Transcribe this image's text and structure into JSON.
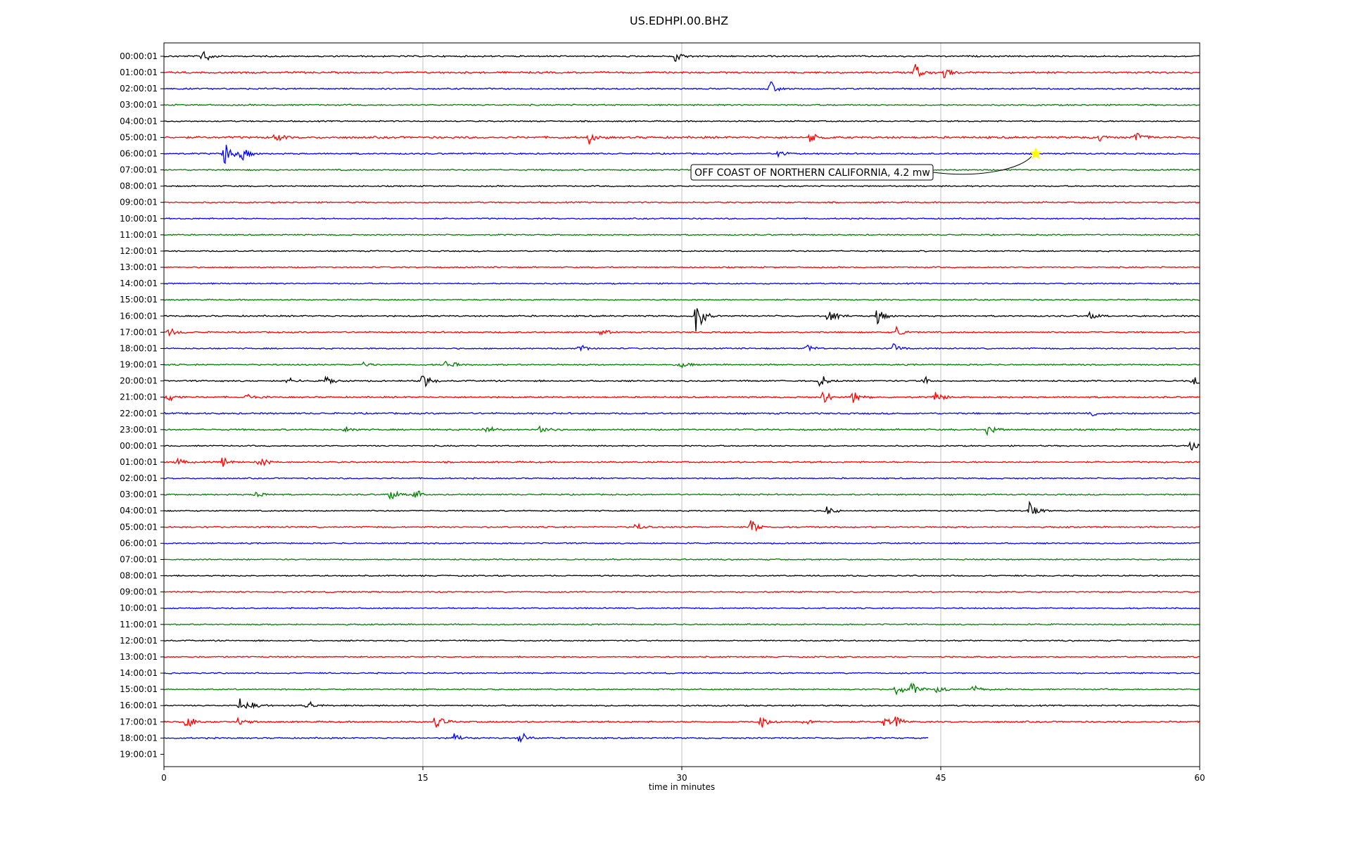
{
  "chart_data": {
    "type": "line",
    "title": "US.EDHPI.00.BHZ",
    "xlabel": "time in minutes",
    "ylabel": "",
    "xlim": [
      0,
      60
    ],
    "x_ticks": [
      0,
      15,
      30,
      45,
      60
    ],
    "x_tick_labels": [
      "0",
      "15",
      "30",
      "45",
      "60"
    ],
    "grid": "vertical lines at x ticks",
    "row_labels": [
      "00:00:01",
      "01:00:01",
      "02:00:01",
      "03:00:01",
      "04:00:01",
      "05:00:01",
      "06:00:01",
      "07:00:01",
      "08:00:01",
      "09:00:01",
      "10:00:01",
      "11:00:01",
      "12:00:01",
      "13:00:01",
      "14:00:01",
      "15:00:01",
      "16:00:01",
      "17:00:01",
      "18:00:01",
      "19:00:01",
      "20:00:01",
      "21:00:01",
      "22:00:01",
      "23:00:01",
      "00:00:01",
      "01:00:01",
      "02:00:01",
      "03:00:01",
      "04:00:01",
      "05:00:01",
      "06:00:01",
      "07:00:01",
      "08:00:01",
      "09:00:01",
      "10:00:01",
      "11:00:01",
      "12:00:01",
      "13:00:01",
      "14:00:01",
      "15:00:01",
      "16:00:01",
      "17:00:01",
      "18:00:01",
      "19:00:01"
    ],
    "color_cycle": [
      "#000000",
      "#ff0000",
      "#0000ff",
      "#008000"
    ],
    "traces": [
      {
        "row": 0,
        "end": 60,
        "noise": 0.15,
        "events": [
          [
            2.2,
            1.8
          ],
          [
            29.6,
            2.0
          ]
        ]
      },
      {
        "row": 1,
        "end": 60,
        "noise": 0.18,
        "events": [
          [
            43.5,
            1.8
          ],
          [
            45.2,
            1.2
          ]
        ]
      },
      {
        "row": 2,
        "end": 60,
        "noise": 0.15,
        "events": [
          [
            35.1,
            1.6
          ]
        ]
      },
      {
        "row": 3,
        "end": 60,
        "noise": 0.14,
        "events": []
      },
      {
        "row": 4,
        "end": 60,
        "noise": 0.13,
        "events": []
      },
      {
        "row": 5,
        "end": 60,
        "noise": 0.2,
        "events": [
          [
            6.4,
            1.2
          ],
          [
            24.6,
            1.4
          ],
          [
            37.4,
            1.2
          ],
          [
            56.3,
            1.6
          ],
          [
            54.2,
            0.8
          ]
        ]
      },
      {
        "row": 6,
        "end": 60,
        "noise": 0.15,
        "events": [
          [
            3.5,
            3.0
          ],
          [
            4.5,
            2.0
          ],
          [
            35.6,
            0.8
          ]
        ]
      },
      {
        "row": 7,
        "end": 60,
        "noise": 0.14,
        "events": []
      },
      {
        "row": 8,
        "end": 60,
        "noise": 0.13,
        "events": []
      },
      {
        "row": 9,
        "end": 60,
        "noise": 0.13,
        "events": []
      },
      {
        "row": 10,
        "end": 60,
        "noise": 0.13,
        "events": []
      },
      {
        "row": 11,
        "end": 60,
        "noise": 0.13,
        "events": []
      },
      {
        "row": 12,
        "end": 60,
        "noise": 0.13,
        "events": []
      },
      {
        "row": 13,
        "end": 60,
        "noise": 0.13,
        "events": []
      },
      {
        "row": 14,
        "end": 60,
        "noise": 0.13,
        "events": []
      },
      {
        "row": 15,
        "end": 60,
        "noise": 0.13,
        "events": []
      },
      {
        "row": 16,
        "end": 60,
        "noise": 0.15,
        "events": [
          [
            30.8,
            5.0
          ],
          [
            38.5,
            1.8
          ],
          [
            41.3,
            2.2
          ],
          [
            53.6,
            1.0
          ]
        ]
      },
      {
        "row": 17,
        "end": 60,
        "noise": 0.15,
        "events": [
          [
            0.3,
            1.4
          ],
          [
            42.4,
            1.6
          ],
          [
            25.3,
            0.8
          ]
        ]
      },
      {
        "row": 18,
        "end": 60,
        "noise": 0.13,
        "events": [
          [
            24.0,
            1.2
          ],
          [
            37.2,
            1.0
          ],
          [
            42.3,
            1.2
          ]
        ]
      },
      {
        "row": 19,
        "end": 60,
        "noise": 0.14,
        "events": [
          [
            16.3,
            1.6
          ],
          [
            29.9,
            1.0
          ],
          [
            11.6,
            0.6
          ]
        ]
      },
      {
        "row": 20,
        "end": 60,
        "noise": 0.15,
        "events": [
          [
            9.4,
            1.4
          ],
          [
            15.0,
            2.0
          ],
          [
            7.2,
            1.0
          ],
          [
            38.0,
            2.0
          ],
          [
            44.0,
            1.0
          ],
          [
            59.6,
            1.4
          ]
        ]
      },
      {
        "row": 21,
        "end": 60,
        "noise": 0.16,
        "events": [
          [
            0.2,
            1.2
          ],
          [
            4.8,
            1.0
          ],
          [
            38.2,
            2.0
          ],
          [
            39.9,
            1.6
          ],
          [
            44.7,
            1.4
          ]
        ]
      },
      {
        "row": 22,
        "end": 60,
        "noise": 0.16,
        "events": [
          [
            53.7,
            0.7
          ]
        ]
      },
      {
        "row": 23,
        "end": 60,
        "noise": 0.16,
        "events": [
          [
            10.5,
            0.8
          ],
          [
            18.6,
            1.2
          ],
          [
            21.8,
            1.4
          ],
          [
            47.7,
            1.4
          ]
        ]
      },
      {
        "row": 24,
        "end": 60,
        "noise": 0.13,
        "events": [
          [
            59.5,
            1.6
          ]
        ]
      },
      {
        "row": 25,
        "end": 60,
        "noise": 0.15,
        "events": [
          [
            0.7,
            1.0
          ],
          [
            3.4,
            1.0
          ],
          [
            5.5,
            1.4
          ]
        ]
      },
      {
        "row": 26,
        "end": 60,
        "noise": 0.13,
        "events": []
      },
      {
        "row": 27,
        "end": 60,
        "noise": 0.14,
        "events": [
          [
            13.1,
            1.4
          ],
          [
            14.5,
            1.6
          ],
          [
            5.3,
            0.8
          ]
        ]
      },
      {
        "row": 28,
        "end": 60,
        "noise": 0.13,
        "events": [
          [
            38.4,
            1.0
          ],
          [
            50.1,
            2.4
          ]
        ]
      },
      {
        "row": 29,
        "end": 60,
        "noise": 0.14,
        "events": [
          [
            27.3,
            1.0
          ],
          [
            34.0,
            2.2
          ]
        ]
      },
      {
        "row": 30,
        "end": 60,
        "noise": 0.13,
        "events": []
      },
      {
        "row": 31,
        "end": 60,
        "noise": 0.13,
        "events": []
      },
      {
        "row": 32,
        "end": 60,
        "noise": 0.13,
        "events": []
      },
      {
        "row": 33,
        "end": 60,
        "noise": 0.13,
        "events": []
      },
      {
        "row": 34,
        "end": 60,
        "noise": 0.13,
        "events": []
      },
      {
        "row": 35,
        "end": 60,
        "noise": 0.13,
        "events": []
      },
      {
        "row": 36,
        "end": 60,
        "noise": 0.13,
        "events": []
      },
      {
        "row": 37,
        "end": 60,
        "noise": 0.13,
        "events": []
      },
      {
        "row": 38,
        "end": 60,
        "noise": 0.13,
        "events": []
      },
      {
        "row": 39,
        "end": 60,
        "noise": 0.13,
        "events": [
          [
            42.4,
            1.6
          ],
          [
            43.3,
            1.4
          ],
          [
            44.8,
            1.4
          ],
          [
            46.8,
            1.0
          ]
        ]
      },
      {
        "row": 40,
        "end": 60,
        "noise": 0.14,
        "events": [
          [
            4.4,
            1.6
          ],
          [
            5.2,
            1.0
          ],
          [
            8.3,
            1.4
          ]
        ]
      },
      {
        "row": 41,
        "end": 60,
        "noise": 0.16,
        "events": [
          [
            1.3,
            2.0
          ],
          [
            4.3,
            1.2
          ],
          [
            15.7,
            1.8
          ],
          [
            34.6,
            1.6
          ],
          [
            37.1,
            1.2
          ],
          [
            41.7,
            1.0
          ],
          [
            42.4,
            1.2
          ]
        ]
      },
      {
        "row": 42,
        "end": 44.3,
        "noise": 0.14,
        "events": [
          [
            16.8,
            0.8
          ],
          [
            20.6,
            1.4
          ]
        ]
      }
    ],
    "annotations": [
      {
        "text": "OFF COAST OF NORTHERN CALIFORNIA, 4.2 mw",
        "row": 6,
        "x": 50.5,
        "marker": "star",
        "marker_color": "#ffff00"
      }
    ]
  }
}
